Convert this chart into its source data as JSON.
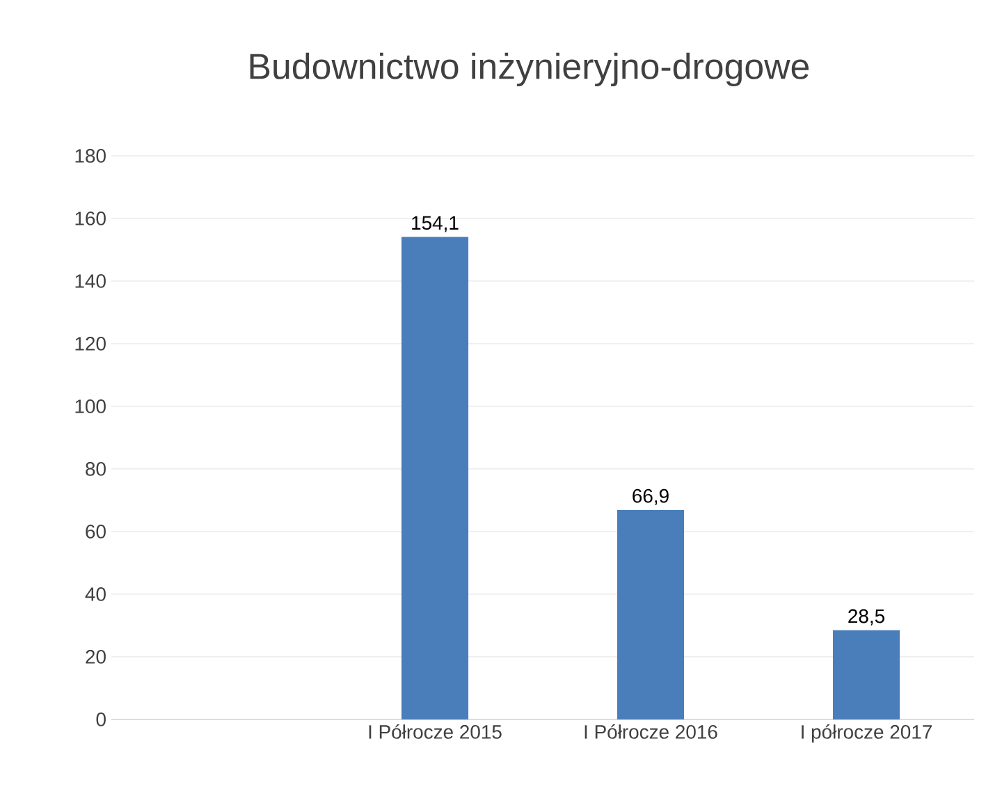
{
  "chart_data": {
    "type": "bar",
    "title": "Budownictwo inżynieryjno-drogowe",
    "categories": [
      null,
      "I Półrocze 2015",
      "I Półrocze 2016",
      "I półrocze 2017"
    ],
    "values": [
      null,
      154.1,
      66.9,
      28.5
    ],
    "value_labels": [
      null,
      "154,1",
      "66,9",
      "28,5"
    ],
    "color": "#4a7ebb",
    "ylim": [
      0,
      180
    ],
    "yticks": [
      0,
      20,
      40,
      60,
      80,
      100,
      120,
      140,
      160,
      180
    ],
    "grid": "y"
  }
}
